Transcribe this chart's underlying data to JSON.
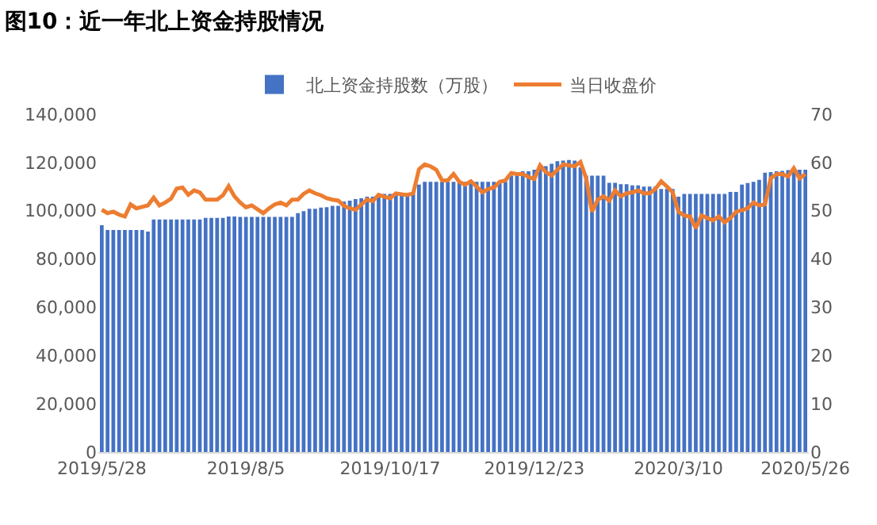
{
  "chart_data": {
    "type": "bar",
    "title": "图10：近一年北上资金持股情况",
    "categories": [
      "2019/5/28",
      null,
      null,
      null,
      null,
      null,
      null,
      null,
      null,
      null,
      null,
      null,
      null,
      null,
      null,
      null,
      null,
      null,
      null,
      null,
      null,
      null,
      null,
      null,
      null,
      "2019/8/5",
      null,
      null,
      null,
      null,
      null,
      null,
      null,
      null,
      null,
      null,
      null,
      null,
      null,
      null,
      null,
      null,
      null,
      null,
      null,
      null,
      null,
      null,
      null,
      null,
      "2019/10/17",
      null,
      null,
      null,
      null,
      null,
      null,
      null,
      null,
      null,
      null,
      null,
      null,
      null,
      null,
      null,
      null,
      null,
      null,
      null,
      null,
      null,
      null,
      null,
      null,
      "2019/12/23",
      null,
      null,
      null,
      null,
      null,
      null,
      null,
      null,
      null,
      null,
      null,
      null,
      null,
      null,
      null,
      null,
      null,
      null,
      null,
      null,
      null,
      null,
      null,
      null,
      "2020/3/10",
      null,
      null,
      null,
      null,
      null,
      null,
      null,
      null,
      null,
      null,
      null,
      null,
      null,
      null,
      null,
      null,
      null,
      null,
      null,
      null,
      null,
      "2020/5/26"
    ],
    "series": [
      {
        "name": "北上资金持股数（万股）",
        "color": "#4472c4",
        "values": [
          94000,
          92000,
          92000,
          92000,
          92000,
          92000,
          92000,
          92000,
          91400,
          96400,
          96400,
          96400,
          96400,
          96400,
          96400,
          96400,
          96400,
          96400,
          97000,
          97000,
          97000,
          97000,
          97600,
          97600,
          97400,
          97400,
          97400,
          97400,
          97400,
          97400,
          97400,
          97400,
          97400,
          97400,
          99000,
          99800,
          100800,
          100800,
          101300,
          101500,
          102000,
          102000,
          103800,
          104200,
          104800,
          105200,
          105800,
          105800,
          107000,
          107000,
          107000,
          107000,
          107000,
          107000,
          107000,
          110800,
          112000,
          112000,
          112000,
          112000,
          112000,
          112000,
          112000,
          112000,
          112000,
          112000,
          112000,
          112000,
          112000,
          112000,
          112000,
          114500,
          115500,
          116300,
          116300,
          117000,
          117500,
          118500,
          119500,
          120500,
          120800,
          121000,
          120800,
          118000,
          114500,
          114500,
          114500,
          114500,
          111600,
          111600,
          111000,
          111000,
          110500,
          110500,
          110000,
          110000,
          110000,
          109000,
          109000,
          109000,
          105800,
          107000,
          107000,
          107000,
          107000,
          107000,
          107000,
          107000,
          107000,
          107800,
          107800,
          110800,
          111500,
          112000,
          112800,
          115800,
          116000,
          116300,
          116500,
          116800,
          117000,
          117000,
          117000
        ]
      },
      {
        "name": "当日收盘价",
        "type": "line",
        "axis": "y2",
        "color": "#ed7d31",
        "values": [
          50.2,
          49.5,
          49.8,
          49.2,
          48.8,
          51.3,
          50.5,
          50.8,
          51.1,
          52.7,
          51.1,
          51.7,
          52.5,
          54.6,
          54.8,
          53.3,
          54.2,
          53.8,
          52.3,
          52.3,
          52.3,
          53.2,
          55.1,
          53.0,
          51.7,
          50.7,
          51.1,
          50.3,
          49.5,
          50.5,
          51.3,
          51.7,
          51.1,
          52.3,
          52.3,
          53.5,
          54.2,
          53.6,
          53.2,
          52.6,
          52.3,
          52.1,
          51.0,
          50.5,
          50.2,
          51.3,
          52.3,
          52.0,
          53.3,
          52.9,
          52.6,
          53.6,
          53.4,
          53.3,
          53.6,
          58.6,
          59.6,
          59.2,
          58.5,
          56.3,
          56.3,
          57.6,
          56.0,
          55.4,
          56.1,
          55.0,
          53.8,
          54.5,
          54.8,
          56.0,
          56.3,
          57.8,
          57.6,
          57.6,
          57.0,
          56.6,
          59.4,
          58.0,
          57.3,
          58.5,
          59.6,
          59.4,
          59.2,
          60.1,
          56.7,
          49.8,
          52.3,
          53.0,
          52.1,
          54.2,
          53.0,
          53.6,
          53.8,
          54.2,
          53.6,
          53.6,
          54.5,
          56.1,
          55.0,
          53.8,
          49.8,
          49.0,
          48.8,
          46.4,
          49.0,
          48.5,
          48.0,
          48.8,
          47.6,
          48.5,
          49.8,
          50.1,
          50.5,
          51.7,
          51.1,
          51.3,
          56.7,
          57.6,
          57.6,
          57.1,
          58.8,
          56.7,
          57.6
        ]
      }
    ],
    "ylim": [
      0,
      140000
    ],
    "yticks": [
      0,
      {
        "value": 20000,
        "label": "20,000"
      },
      {
        "value": 40000,
        "label": "40,000"
      },
      {
        "value": 60000,
        "label": "60,000"
      },
      {
        "value": 80000,
        "label": "80,000"
      },
      {
        "value": 100000,
        "label": "100,000"
      },
      {
        "value": 120000,
        "label": "120,000"
      },
      {
        "value": 140000,
        "label": "140,000"
      }
    ],
    "y2lim": [
      0,
      70
    ],
    "y2ticks": [
      0,
      10,
      20,
      30,
      40,
      50,
      60,
      70
    ],
    "legend": "top",
    "marker": "none"
  }
}
